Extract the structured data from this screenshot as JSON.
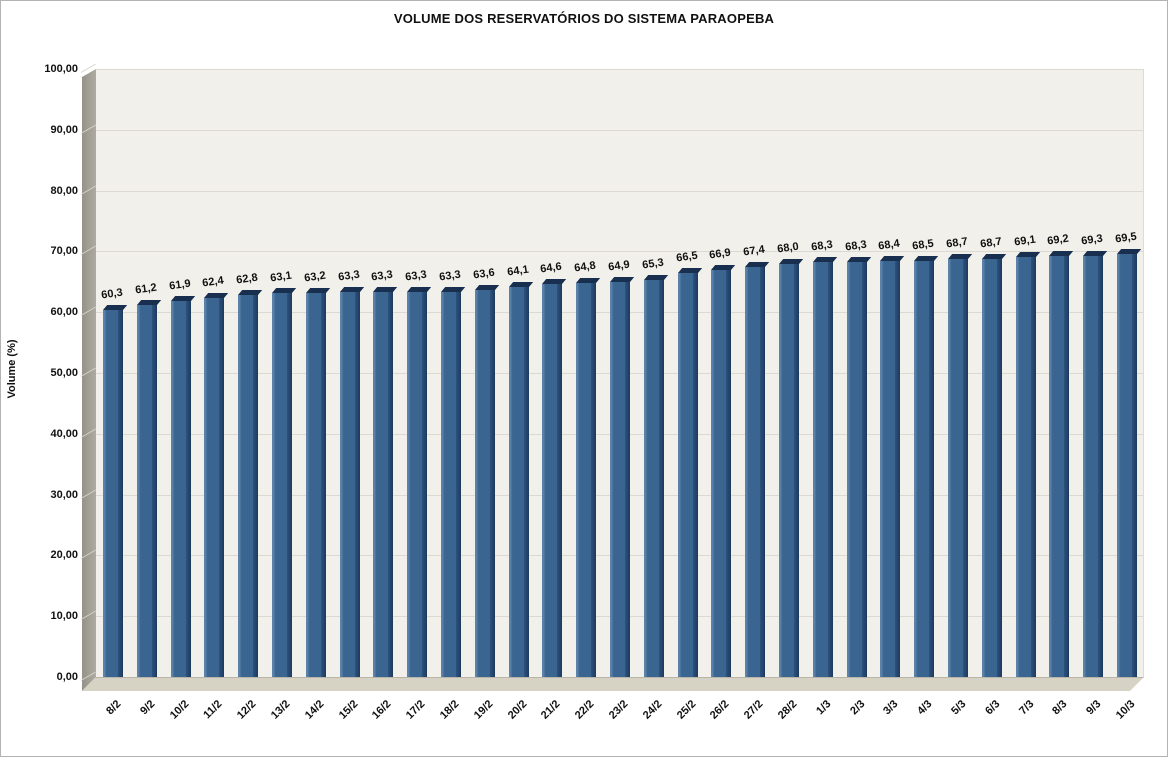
{
  "window": {
    "background_color": "#ffffff",
    "border_color": "#b3b3b3"
  },
  "chart_data": {
    "type": "bar",
    "style": "3d-column",
    "title": "VOLUME DOS RESERVATÓRIOS DO SISTEMA PARAOPEBA",
    "xlabel": "",
    "ylabel": "Volume (%)",
    "ylim": [
      0,
      100
    ],
    "ytick_step": 10,
    "ytick_labels": [
      "0,00",
      "10,00",
      "20,00",
      "30,00",
      "40,00",
      "50,00",
      "60,00",
      "70,00",
      "80,00",
      "90,00",
      "100,00"
    ],
    "grid": true,
    "legend_position": "none",
    "categories": [
      "8/2",
      "9/2",
      "10/2",
      "11/2",
      "12/2",
      "13/2",
      "14/2",
      "15/2",
      "16/2",
      "17/2",
      "18/2",
      "19/2",
      "20/2",
      "21/2",
      "22/2",
      "23/2",
      "24/2",
      "25/2",
      "26/2",
      "27/2",
      "28/2",
      "1/3",
      "2/3",
      "3/3",
      "4/3",
      "5/3",
      "6/3",
      "7/3",
      "8/3",
      "9/3",
      "10/3"
    ],
    "values": [
      60.3,
      61.2,
      61.9,
      62.4,
      62.8,
      63.1,
      63.2,
      63.3,
      63.3,
      63.3,
      63.3,
      63.6,
      64.1,
      64.6,
      64.8,
      64.9,
      65.3,
      66.5,
      66.9,
      67.4,
      68.0,
      68.3,
      68.3,
      68.4,
      68.5,
      68.7,
      68.7,
      69.1,
      69.2,
      69.3,
      69.5
    ],
    "value_labels": [
      "60,3",
      "61,2",
      "61,9",
      "62,4",
      "62,8",
      "63,1",
      "63,2",
      "63,3",
      "63,3",
      "63,3",
      "63,3",
      "63,6",
      "64,1",
      "64,6",
      "64,8",
      "64,9",
      "65,3",
      "66,5",
      "66,9",
      "67,4",
      "68,0",
      "68,3",
      "68,3",
      "68,4",
      "68,5",
      "68,7",
      "68,7",
      "69,1",
      "69,2",
      "69,3",
      "69,5"
    ],
    "colors": {
      "bar_face": "#3a6590",
      "bar_side": "#1d3a5e",
      "bar_top": "#182f50",
      "bar_highlight": "#5c82aa",
      "plot_background": "#f2f0ea",
      "gridline": "#dbd9d0",
      "wall": "#a19d93",
      "floor": "#d7d3c4",
      "text": "#111111"
    }
  }
}
